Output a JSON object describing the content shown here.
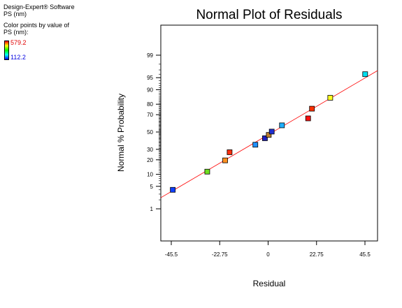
{
  "header": {
    "software": "Design-Expert® Software",
    "response": "PS (nm)",
    "color_note": "Color points by value of",
    "color_response": "PS (nm):",
    "color_max": "579.2",
    "color_min": "112.2"
  },
  "chart_data": {
    "type": "scatter",
    "title": "Normal Plot of Residuals",
    "xlabel": "Residual",
    "ylabel": "Normal % Probability",
    "xlim": [
      -45.5,
      45.5
    ],
    "x_ticks": [
      -45.5,
      -22.75,
      0,
      22.75,
      45.5
    ],
    "x_tick_labels": [
      "-45.5",
      "-22.75",
      "0",
      "22.75",
      "45.5"
    ],
    "y_scale": "normal-probability",
    "y_ticks": [
      1,
      5,
      10,
      20,
      30,
      50,
      70,
      80,
      90,
      95,
      99
    ],
    "y_tick_labels": [
      "1",
      "5",
      "10",
      "20",
      "30",
      "50",
      "70",
      "80",
      "90",
      "95",
      "99"
    ],
    "reference_line": {
      "color": "#ff0000"
    },
    "points": [
      {
        "x": -44.8,
        "y": 4.0,
        "color": "#1040ff"
      },
      {
        "x": -28.6,
        "y": 11.5,
        "color": "#70e020"
      },
      {
        "x": -20.2,
        "y": 19.5,
        "color": "#ff9020"
      },
      {
        "x": -18.1,
        "y": 27.0,
        "color": "#ff3010"
      },
      {
        "x": -6.0,
        "y": 35.0,
        "color": "#2090ff"
      },
      {
        "x": -1.5,
        "y": 42.5,
        "color": "#2020c0"
      },
      {
        "x": 0.3,
        "y": 46.5,
        "color": "#c08030"
      },
      {
        "x": 1.7,
        "y": 50.5,
        "color": "#2030d0"
      },
      {
        "x": 6.5,
        "y": 58.0,
        "color": "#20b0ff"
      },
      {
        "x": 18.8,
        "y": 66.0,
        "color": "#ff1010"
      },
      {
        "x": 20.6,
        "y": 76.0,
        "color": "#ff3000"
      },
      {
        "x": 29.2,
        "y": 85.0,
        "color": "#ffff20"
      },
      {
        "x": 45.6,
        "y": 96.0,
        "color": "#00e0f0"
      }
    ]
  }
}
